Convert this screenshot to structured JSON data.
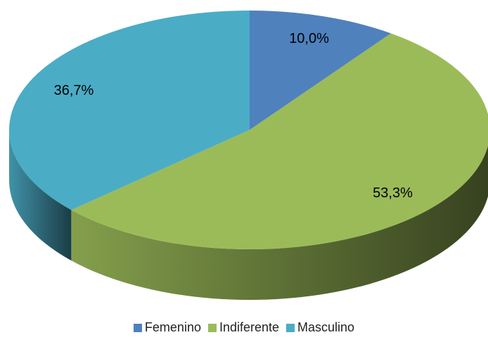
{
  "chart_data": {
    "type": "pie",
    "categories": [
      "Femenino",
      "Indiferente",
      "Masculino"
    ],
    "values": [
      10.0,
      53.3,
      36.7
    ],
    "value_labels": [
      "10,0%",
      "53,3%",
      "36,7%"
    ],
    "colors": [
      "#4f81bd",
      "#9bbb59",
      "#4bacc6"
    ],
    "legend": "bottom"
  }
}
